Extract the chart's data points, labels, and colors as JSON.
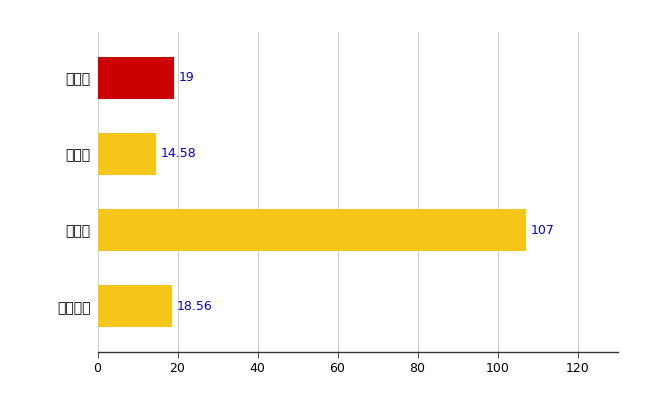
{
  "categories": [
    "全国平均",
    "県最大",
    "県平均",
    "遠野市"
  ],
  "values": [
    18.56,
    107,
    14.58,
    19
  ],
  "bar_colors": [
    "#F5C518",
    "#F5C518",
    "#F5C518",
    "#CC0000"
  ],
  "value_labels": [
    "18.56",
    "107",
    "14.58",
    "19"
  ],
  "xlim": [
    0,
    130
  ],
  "xticks": [
    0,
    20,
    40,
    60,
    80,
    100,
    120
  ],
  "grid_color": "#CCCCCC",
  "background_color": "#FFFFFF",
  "label_color": "#0000CC",
  "label_fontsize": 9,
  "tick_fontsize": 9,
  "bar_height": 0.55,
  "ytick_fontsize": 10
}
